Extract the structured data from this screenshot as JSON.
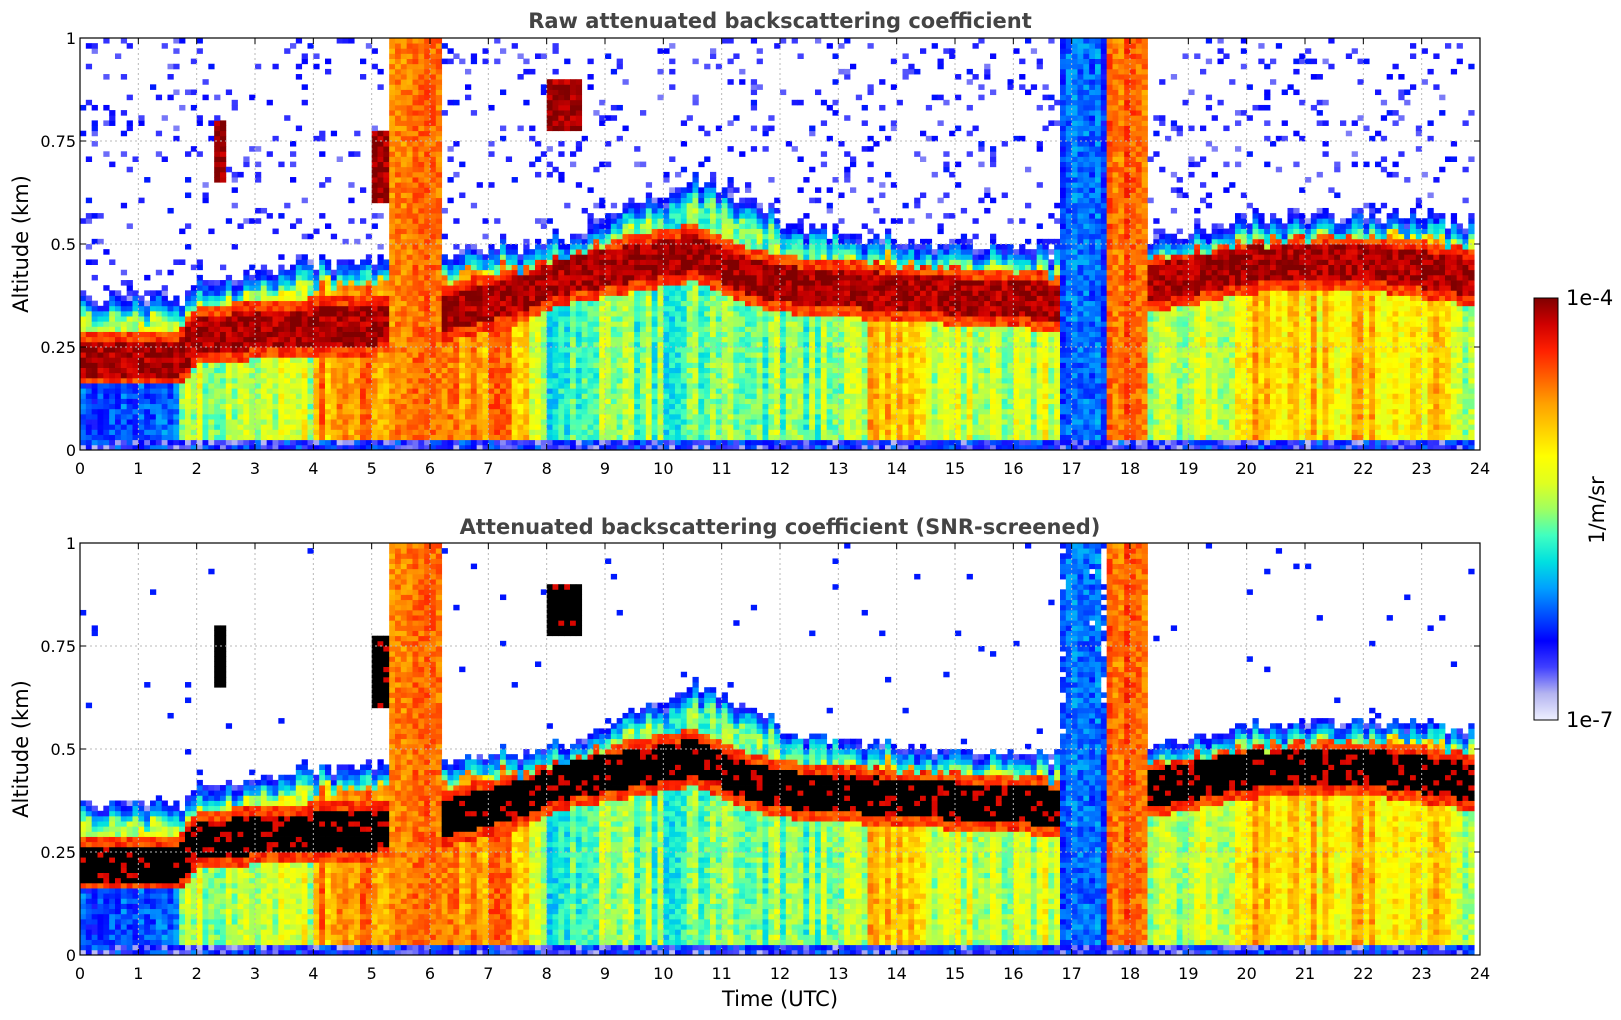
{
  "chart_data": [
    {
      "type": "heatmap",
      "title": "Raw attenuated backscattering coefficient",
      "xlabel": "",
      "ylabel": "Altitude (km)",
      "xlim": [
        0,
        24
      ],
      "ylim": [
        0,
        1
      ],
      "x_ticks": [
        "0",
        "1",
        "2",
        "3",
        "4",
        "5",
        "6",
        "7",
        "8",
        "9",
        "10",
        "11",
        "12",
        "13",
        "14",
        "15",
        "16",
        "17",
        "18",
        "19",
        "20",
        "21",
        "22",
        "23",
        "24"
      ],
      "y_ticks": [
        "0",
        "0.25",
        "0.5",
        "0.75",
        "1"
      ],
      "grid": true,
      "mask_saturated_black": false,
      "features": [
        {
          "kind": "boundary_layer_top",
          "points": [
            [
              0,
              0.32
            ],
            [
              1.7,
              0.32
            ],
            [
              2.0,
              0.36
            ],
            [
              5.0,
              0.42
            ],
            [
              6.2,
              0.42
            ],
            [
              7.8,
              0.45
            ],
            [
              8.2,
              0.45
            ],
            [
              10.5,
              0.6
            ],
            [
              11.5,
              0.55
            ],
            [
              12.3,
              0.48
            ],
            [
              17.0,
              0.43
            ],
            [
              20.0,
              0.5
            ],
            [
              21.5,
              0.53
            ],
            [
              23.9,
              0.5
            ]
          ]
        },
        {
          "kind": "dense_aerosol_layer",
          "points": [
            [
              0,
              0.22
            ],
            [
              1.7,
              0.22
            ],
            [
              2.0,
              0.28
            ],
            [
              4.0,
              0.3
            ],
            [
              5.0,
              0.3
            ],
            [
              6.2,
              0.33
            ],
            [
              7.6,
              0.38
            ],
            [
              8.2,
              0.42
            ],
            [
              10.5,
              0.48
            ],
            [
              11.5,
              0.42
            ],
            [
              12.2,
              0.4
            ],
            [
              15.5,
              0.37
            ],
            [
              16.8,
              0.36
            ],
            [
              20.0,
              0.45
            ],
            [
              22.0,
              0.46
            ],
            [
              23.9,
              0.42
            ]
          ]
        },
        {
          "kind": "cloud",
          "x": [
            2.3,
            2.5
          ],
          "y": [
            0.65,
            0.8
          ]
        },
        {
          "kind": "cloud",
          "x": [
            7.95,
            8.6
          ],
          "y": [
            0.78,
            0.9
          ]
        },
        {
          "kind": "cloud",
          "x": [
            5.0,
            5.3
          ],
          "y": [
            0.6,
            0.78
          ]
        },
        {
          "kind": "thick_layer",
          "x": [
            5.3,
            6.2
          ],
          "y": [
            0.0,
            1.0
          ]
        },
        {
          "kind": "thick_layer",
          "x": [
            17.6,
            18.3
          ],
          "y": [
            0.0,
            1.0
          ]
        },
        {
          "kind": "clear_air_low_signal",
          "x": [
            0,
            1.7
          ],
          "y": [
            0.0,
            0.16
          ]
        },
        {
          "kind": "clear_air_low_signal",
          "x": [
            16.8,
            17.6
          ],
          "y": [
            0.0,
            1.0
          ]
        }
      ]
    },
    {
      "type": "heatmap",
      "title": "Attenuated backscattering coefficient (SNR-screened)",
      "xlabel": "Time (UTC)",
      "ylabel": "Altitude (km)",
      "xlim": [
        0,
        24
      ],
      "ylim": [
        0,
        1
      ],
      "x_ticks": [
        "0",
        "1",
        "2",
        "3",
        "4",
        "5",
        "6",
        "7",
        "8",
        "9",
        "10",
        "11",
        "12",
        "13",
        "14",
        "15",
        "16",
        "17",
        "18",
        "19",
        "20",
        "21",
        "22",
        "23",
        "24"
      ],
      "y_ticks": [
        "0",
        "0.25",
        "0.5",
        "0.75",
        "1"
      ],
      "grid": true,
      "mask_saturated_black": true
    }
  ],
  "colorbar": {
    "min_label": "1e-7",
    "max_label": "1e-4",
    "unit_label": "1/m/sr",
    "scale": "log",
    "colormap": [
      "#eef0ff",
      "#b4b4f0",
      "#4040ff",
      "#0000ff",
      "#0050ff",
      "#00a0ff",
      "#00e0e0",
      "#40ff c0",
      "#a0ff60",
      "#e0ff20",
      "#ffff00",
      "#ffd000",
      "#ffa000",
      "#ff6000",
      "#ff2000",
      "#d00000",
      "#800000"
    ],
    "saturated_color": "#800000",
    "screened_saturated_color": "#000000"
  }
}
